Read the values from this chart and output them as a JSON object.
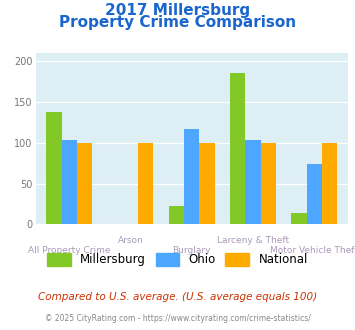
{
  "title_line1": "2017 Millersburg",
  "title_line2": "Property Crime Comparison",
  "categories": [
    "All Property Crime",
    "Arson",
    "Burglary",
    "Larceny & Theft",
    "Motor Vehicle Theft"
  ],
  "cat_labels_row1": [
    "",
    "Arson",
    "",
    "Larceny & Theft",
    ""
  ],
  "cat_labels_row2": [
    "All Property Crime",
    "",
    "Burglary",
    "",
    "Motor Vehicle Theft"
  ],
  "millersburg": [
    138,
    0,
    22,
    185,
    14
  ],
  "ohio": [
    103,
    0,
    117,
    103,
    74
  ],
  "national": [
    100,
    100,
    100,
    100,
    100
  ],
  "millersburg_color": "#82c827",
  "ohio_color": "#4da6ff",
  "national_color": "#ffaa00",
  "bg_color": "#ddeef5",
  "title_color": "#1a66cc",
  "xlabel_color": "#aa99bb",
  "ylabel_values": [
    0,
    50,
    100,
    150,
    200
  ],
  "ylim": [
    0,
    210
  ],
  "footer_text": "Compared to U.S. average. (U.S. average equals 100)",
  "copyright_text": "© 2025 CityRating.com - https://www.cityrating.com/crime-statistics/",
  "legend_labels": [
    "Millersburg",
    "Ohio",
    "National"
  ],
  "bar_width": 0.25
}
